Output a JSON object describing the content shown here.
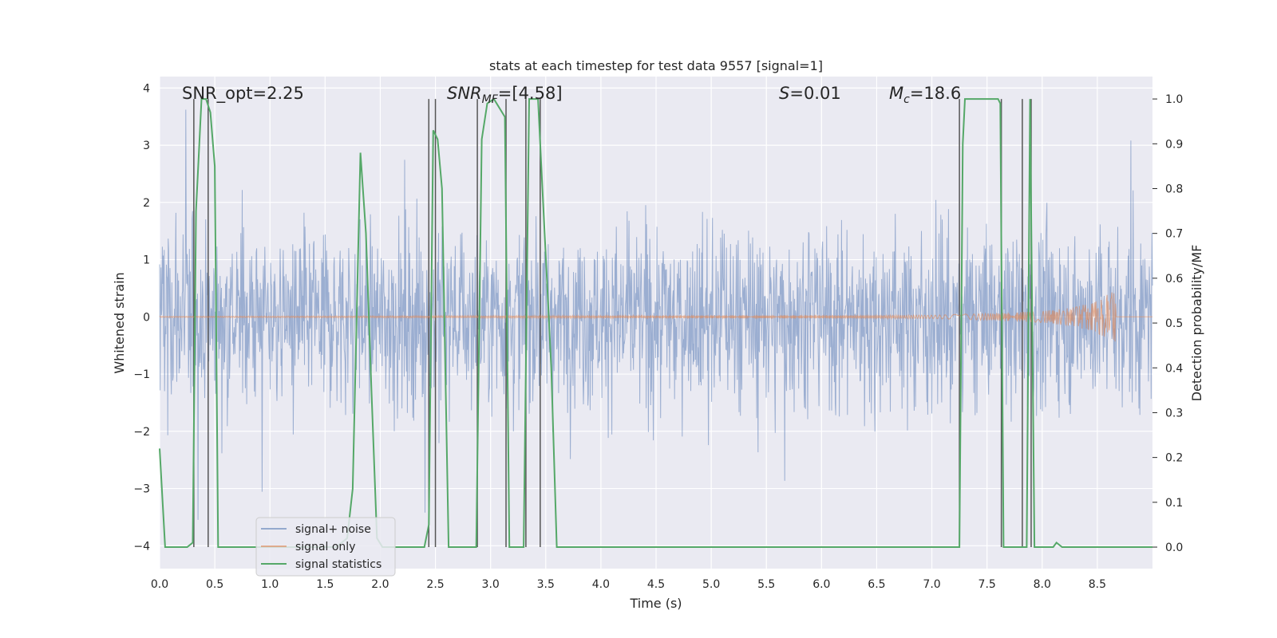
{
  "chart_data": {
    "type": "line",
    "title": "stats at each timestep for test data 9557 [signal=1]",
    "xlabel": "Time (s)",
    "ylabel": "Whitened strain",
    "ylabel_right": "Detection probability/MF",
    "xlim": [
      0.0,
      9.0
    ],
    "ylim": [
      -4.4,
      4.2
    ],
    "ylim_right": [
      -0.048,
      1.05
    ],
    "x_ticks": [
      0.0,
      0.5,
      1.0,
      1.5,
      2.0,
      2.5,
      3.0,
      3.5,
      4.0,
      4.5,
      5.0,
      5.5,
      6.0,
      6.5,
      7.0,
      7.5,
      8.0,
      8.5
    ],
    "x_tick_labels": [
      "0.0",
      "0.5",
      "1.0",
      "1.5",
      "2.0",
      "2.5",
      "3.0",
      "3.5",
      "4.0",
      "4.5",
      "5.0",
      "5.5",
      "6.0",
      "6.5",
      "7.0",
      "7.5",
      "8.0",
      "8.5"
    ],
    "y_ticks": [
      4,
      3,
      2,
      1,
      0,
      -1,
      -2,
      -3,
      -4
    ],
    "y_tick_labels": [
      "4",
      "3",
      "2",
      "1",
      "0",
      "−1",
      "−2",
      "−3",
      "−4"
    ],
    "y_ticks_right": [
      1.0,
      0.9,
      0.8,
      0.7,
      0.6,
      0.5,
      0.4,
      0.3,
      0.2,
      0.1,
      0.0
    ],
    "y_tick_labels_right": [
      "1.0",
      "0.9",
      "0.8",
      "0.7",
      "0.6",
      "0.5",
      "0.4",
      "0.3",
      "0.2",
      "0.1",
      "0.0"
    ],
    "grid": true,
    "legend_position": "lower-left",
    "annotations": {
      "snr_opt": "SNR_opt=2.25",
      "snr_mf_main": "SNR",
      "snr_mf_sub": "MF",
      "snr_mf_value": "=[4.58]",
      "s_main": "S",
      "s_value": "=0.01",
      "mc_main": "M",
      "mc_sub": "c",
      "mc_value": "=18.6"
    },
    "series": [
      {
        "name": "signal+ noise",
        "color": "#4c72b0",
        "description_values": "whitened noise band, typical amplitude about ±1.5, peaks reaching +3.8 and −4.0"
      },
      {
        "name": "signal only",
        "color": "#dd8452",
        "x": [
          0.0,
          7.0,
          7.5,
          8.0,
          8.3,
          8.5,
          8.6,
          8.66,
          8.67
        ],
        "amplitude": [
          0.01,
          0.03,
          0.06,
          0.1,
          0.17,
          0.28,
          0.4,
          0.5,
          0.0
        ]
      },
      {
        "name": "signal statistics",
        "color": "#55a868",
        "x": [
          0.0,
          0.05,
          0.1,
          0.15,
          0.2,
          0.25,
          0.3,
          0.33,
          0.38,
          0.42,
          0.46,
          0.5,
          0.53,
          0.56,
          0.6,
          0.65,
          0.7,
          0.8,
          0.9,
          1.0,
          1.2,
          1.4,
          1.6,
          1.7,
          1.75,
          1.82,
          1.87,
          1.92,
          1.97,
          2.02,
          2.1,
          2.2,
          2.3,
          2.4,
          2.44,
          2.48,
          2.52,
          2.56,
          2.62,
          2.68,
          2.75,
          2.82,
          2.87,
          2.92,
          2.97,
          3.03,
          3.08,
          3.13,
          3.17,
          3.21,
          3.26,
          3.3,
          3.35,
          3.39,
          3.43,
          3.47,
          3.51,
          3.55,
          3.6,
          3.65,
          3.7,
          4.0,
          5.0,
          6.0,
          7.0,
          7.25,
          7.28,
          7.3,
          7.35,
          7.5,
          7.6,
          7.62,
          7.65,
          7.75,
          7.8,
          7.83,
          7.86,
          7.89,
          7.93,
          8.0,
          8.05,
          8.1,
          8.13,
          8.18,
          8.3,
          8.5,
          8.7,
          9.0
        ],
        "values": [
          0.22,
          0.0,
          0.0,
          0.0,
          0.0,
          0.0,
          0.01,
          0.75,
          1.0,
          1.0,
          0.97,
          0.85,
          0.0,
          0.0,
          0.0,
          0.0,
          0.0,
          0.0,
          0.0,
          0.0,
          0.0,
          0.0,
          0.0,
          0.02,
          0.13,
          0.88,
          0.7,
          0.35,
          0.02,
          0.0,
          0.0,
          0.0,
          0.0,
          0.0,
          0.05,
          0.93,
          0.91,
          0.8,
          0.0,
          0.0,
          0.0,
          0.0,
          0.0,
          0.91,
          0.99,
          1.0,
          0.98,
          0.96,
          0.0,
          0.0,
          0.0,
          0.0,
          1.0,
          1.0,
          1.0,
          0.8,
          0.6,
          0.4,
          0.0,
          0.0,
          0.0,
          0.0,
          0.0,
          0.0,
          0.0,
          0.0,
          0.9,
          1.0,
          1.0,
          1.0,
          1.0,
          0.99,
          0.0,
          0.0,
          0.0,
          0.0,
          0.0,
          1.0,
          0.0,
          0.0,
          0.0,
          0.0,
          0.01,
          0.0,
          0.0,
          0.0,
          0.0,
          0.0
        ]
      }
    ],
    "markers_x": [
      0.31,
      0.44,
      2.44,
      2.5,
      2.88,
      3.14,
      3.32,
      3.45,
      7.25,
      7.63,
      7.82,
      7.9
    ]
  }
}
